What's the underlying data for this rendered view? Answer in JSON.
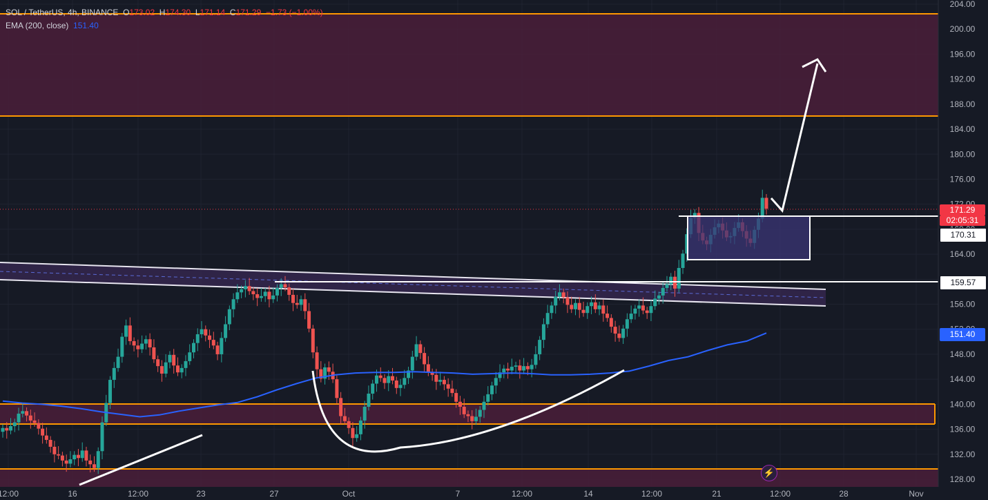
{
  "header": {
    "symbol": "SOL / TetherUS, 4h, BINANCE",
    "o_label": "O",
    "o_value": "173.02",
    "h_label": "H",
    "h_value": "174.30",
    "l_label": "L",
    "l_value": "171.14",
    "c_label": "C",
    "c_value": "171.29",
    "change": "−1.73 (−1.00%)",
    "ema_label": "EMA (200, close)",
    "ema_value": "151.40"
  },
  "price_tags": {
    "last_price": "171.29",
    "countdown": "02:05:31",
    "level_box_top": "170.31",
    "level_breakout": "159.57",
    "ema": "151.40"
  },
  "colors": {
    "up": "#26a69a",
    "down": "#ef5350",
    "ema": "#2962ff",
    "zone_fill": "#4a1e3a",
    "zone_border": "#ff9800",
    "channel_fill": "#3a2a55",
    "background": "#161a25",
    "grid": "#1f2330"
  },
  "icons": {
    "alert": "lightning-icon"
  },
  "chart_data": {
    "type": "candlestick",
    "symbol": "SOL / TetherUS",
    "interval": "4h",
    "exchange": "BINANCE",
    "ylim": [
      127,
      206
    ],
    "y_ticks": [
      "128.00",
      "132.00",
      "136.00",
      "140.00",
      "144.00",
      "148.00",
      "152.00",
      "156.00",
      "160.00",
      "164.00",
      "168.00",
      "172.00",
      "176.00",
      "180.00",
      "184.00",
      "188.00",
      "192.00",
      "196.00",
      "200.00",
      "204.00"
    ],
    "x_ticks": [
      "12:00",
      "16",
      "12:00",
      "23",
      "27",
      "Oct",
      "7",
      "12:00",
      "14",
      "12:00",
      "21",
      "12:00",
      "28",
      "Nov"
    ],
    "series": [
      {
        "name": "EMA (200, close)",
        "last": 151.4,
        "values": [
          140.5,
          140.2,
          140.0,
          139.7,
          139.3,
          138.8,
          138.4,
          138.0,
          138.3,
          138.9,
          139.4,
          139.9,
          140.3,
          141.2,
          142.3,
          143.3,
          144.2,
          144.7,
          145.0,
          145.1,
          145.1,
          145.2,
          145.1,
          145.0,
          144.8,
          144.9,
          145.0,
          144.9,
          144.7,
          144.7,
          144.8,
          145.0,
          145.3,
          146.1,
          147.0,
          147.6,
          148.6,
          149.5,
          150.1,
          151.4
        ]
      }
    ],
    "closes": [
      136.2,
      135.8,
      136.5,
      137.1,
      138.5,
      138.9,
      138.2,
      137.4,
      137.0,
      136.1,
      135.0,
      134.3,
      133.2,
      132.0,
      131.8,
      131.0,
      130.5,
      131.2,
      131.9,
      131.4,
      132.6,
      131.0,
      130.4,
      129.8,
      132.5,
      137.1,
      140.2,
      143.9,
      145.8,
      147.6,
      150.8,
      152.6,
      150.1,
      149.4,
      148.8,
      149.7,
      150.4,
      149.1,
      147.2,
      146.1,
      144.9,
      146.7,
      147.9,
      146.2,
      145.1,
      145.8,
      146.9,
      148.3,
      149.8,
      151.2,
      152.0,
      151.0,
      150.3,
      149.4,
      148.0,
      150.6,
      152.8,
      155.2,
      156.8,
      157.9,
      158.4,
      158.9,
      158.1,
      157.6,
      157.0,
      157.3,
      158.0,
      156.8,
      157.4,
      158.6,
      159.2,
      158.7,
      157.5,
      156.2,
      155.9,
      156.8,
      154.9,
      152.1,
      148.3,
      145.6,
      144.1,
      145.9,
      145.2,
      144.0,
      141.0,
      138.1,
      137.3,
      136.2,
      134.6,
      135.2,
      137.4,
      139.6,
      141.7,
      143.3,
      144.6,
      144.2,
      143.4,
      144.5,
      143.8,
      142.6,
      143.1,
      144.2,
      145.4,
      147.6,
      149.6,
      148.2,
      146.4,
      145.1,
      144.7,
      143.6,
      143.9,
      143.2,
      142.5,
      141.8,
      140.4,
      139.6,
      138.4,
      138.1,
      137.3,
      138.0,
      139.1,
      140.4,
      141.6,
      143.0,
      144.2,
      145.1,
      145.7,
      145.4,
      146.0,
      146.2,
      145.4,
      146.1,
      145.6,
      146.3,
      148.0,
      150.3,
      152.8,
      154.6,
      155.8,
      157.2,
      157.9,
      157.1,
      155.9,
      155.2,
      156.2,
      155.1,
      154.6,
      155.7,
      156.3,
      155.2,
      155.8,
      154.5,
      153.8,
      152.4,
      151.3,
      150.6,
      152.1,
      153.6,
      154.5,
      155.3,
      155.8,
      155.0,
      154.6,
      155.7,
      156.9,
      157.4,
      158.6,
      159.2,
      160.4,
      158.5,
      161.8,
      164.1,
      167.2,
      169.8,
      170.6,
      167.4,
      166.2,
      165.6,
      167.1,
      168.3,
      168.9,
      167.8,
      166.7,
      166.9,
      168.2,
      169.1,
      167.7,
      166.5,
      165.8,
      167.9,
      169.7,
      173.02,
      171.29
    ]
  }
}
